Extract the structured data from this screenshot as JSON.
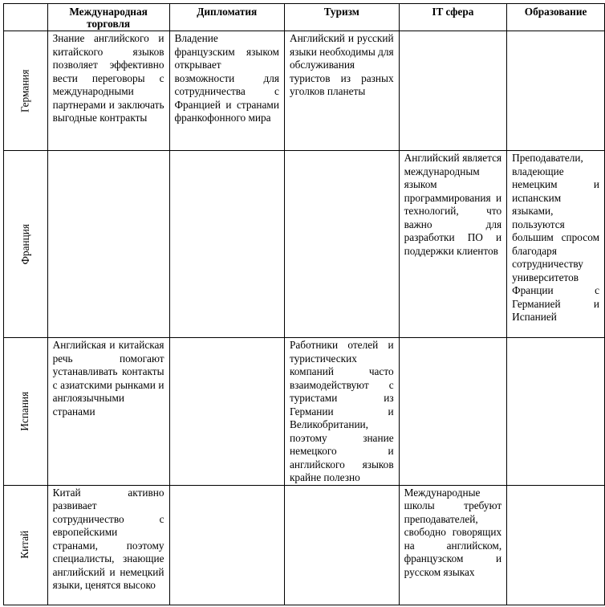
{
  "columns": [
    "",
    "Международная торговля",
    "Дипломатия",
    "Туризм",
    "IT сфера",
    "Образование"
  ],
  "rows": [
    {
      "country": "Германия",
      "cells": [
        "Знание английского и китайского языков позволяет эффективно вести переговоры с международными партнерами и заключать выгодные контракты",
        "Владение французским языком открывает возможности для сотрудничества с Францией и странами франкофонного мира",
        "Английский и русский языки необходимы для обслуживания туристов из разных уголков планеты",
        "",
        ""
      ]
    },
    {
      "country": "Франция",
      "cells": [
        "",
        "",
        "",
        "Английский является международным языком программирования и технологий, что важно для разработки ПО и поддержки клиентов",
        "Преподаватели, владеющие немецким и испанским языками, пользуются большим спросом благодаря сотрудничеству университетов Франции с Германией и Испанией"
      ]
    },
    {
      "country": "Испания",
      "cells": [
        "Английская и китайская речь помогают устанавливать контакты с азиатскими рынками и англоязычными странами",
        "",
        "Работники отелей и туристических компаний часто взаимодействуют с туристами из Германии и Великобритании, поэтому знание немецкого и английского языков крайне полезно",
        "",
        ""
      ]
    },
    {
      "country": "Китай",
      "cells": [
        "Китай активно развивает сотрудничество с европейскими странами, поэтому специалисты, знающие английский и немецкий языки, ценятся высоко",
        "",
        "",
        "Международные школы требуют преподавателей, свободно говорящих на английском, французском и русском языках",
        ""
      ]
    }
  ]
}
